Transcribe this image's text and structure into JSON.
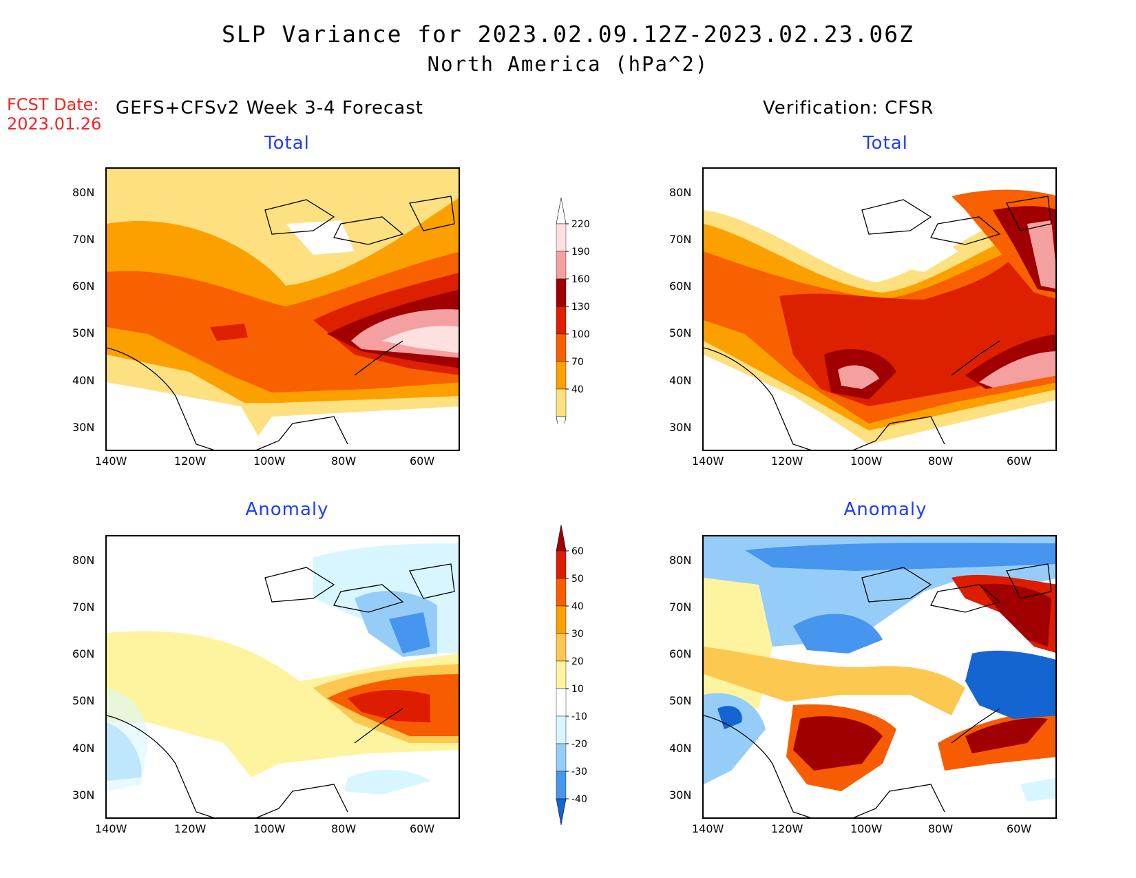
{
  "title": "SLP Variance for 2023.02.09.12Z-2023.02.23.06Z",
  "subtitle": "North America (hPa^2)",
  "fcst_label": "FCST Date:",
  "fcst_date": "2023.01.26",
  "left_header": "GEFS+CFSv2 Week 3-4 Forecast",
  "right_header": "Verification: CFSR",
  "panels": {
    "fc_total": {
      "title": "Total"
    },
    "ver_total": {
      "title": "Total"
    },
    "fc_anom": {
      "title": "Anomaly"
    },
    "ver_anom": {
      "title": "Anomaly"
    }
  },
  "axes": {
    "lat_labels": [
      "80N",
      "70N",
      "60N",
      "50N",
      "40N",
      "30N"
    ],
    "lon_labels": [
      "140W",
      "120W",
      "100W",
      "80W",
      "60W"
    ]
  },
  "total_colorbar": {
    "labels": [
      "220",
      "190",
      "160",
      "130",
      "100",
      "70",
      "40"
    ],
    "colors": [
      "#fde0e0",
      "#f4a0a0",
      "#a00000",
      "#dd2000",
      "#f86000",
      "#fca000",
      "#fde080"
    ]
  },
  "anom_colorbar": {
    "labels": [
      "60",
      "50",
      "40",
      "30",
      "20",
      "10",
      "-10",
      "-20",
      "-30",
      "-40"
    ],
    "colors": [
      "#a00000",
      "#dd1c00",
      "#f85c00",
      "#fca000",
      "#fcc850",
      "#fef4a0",
      "#ffffff",
      "#d8f6ff",
      "#96cdf8",
      "#4696f0",
      "#1464d2"
    ]
  }
}
